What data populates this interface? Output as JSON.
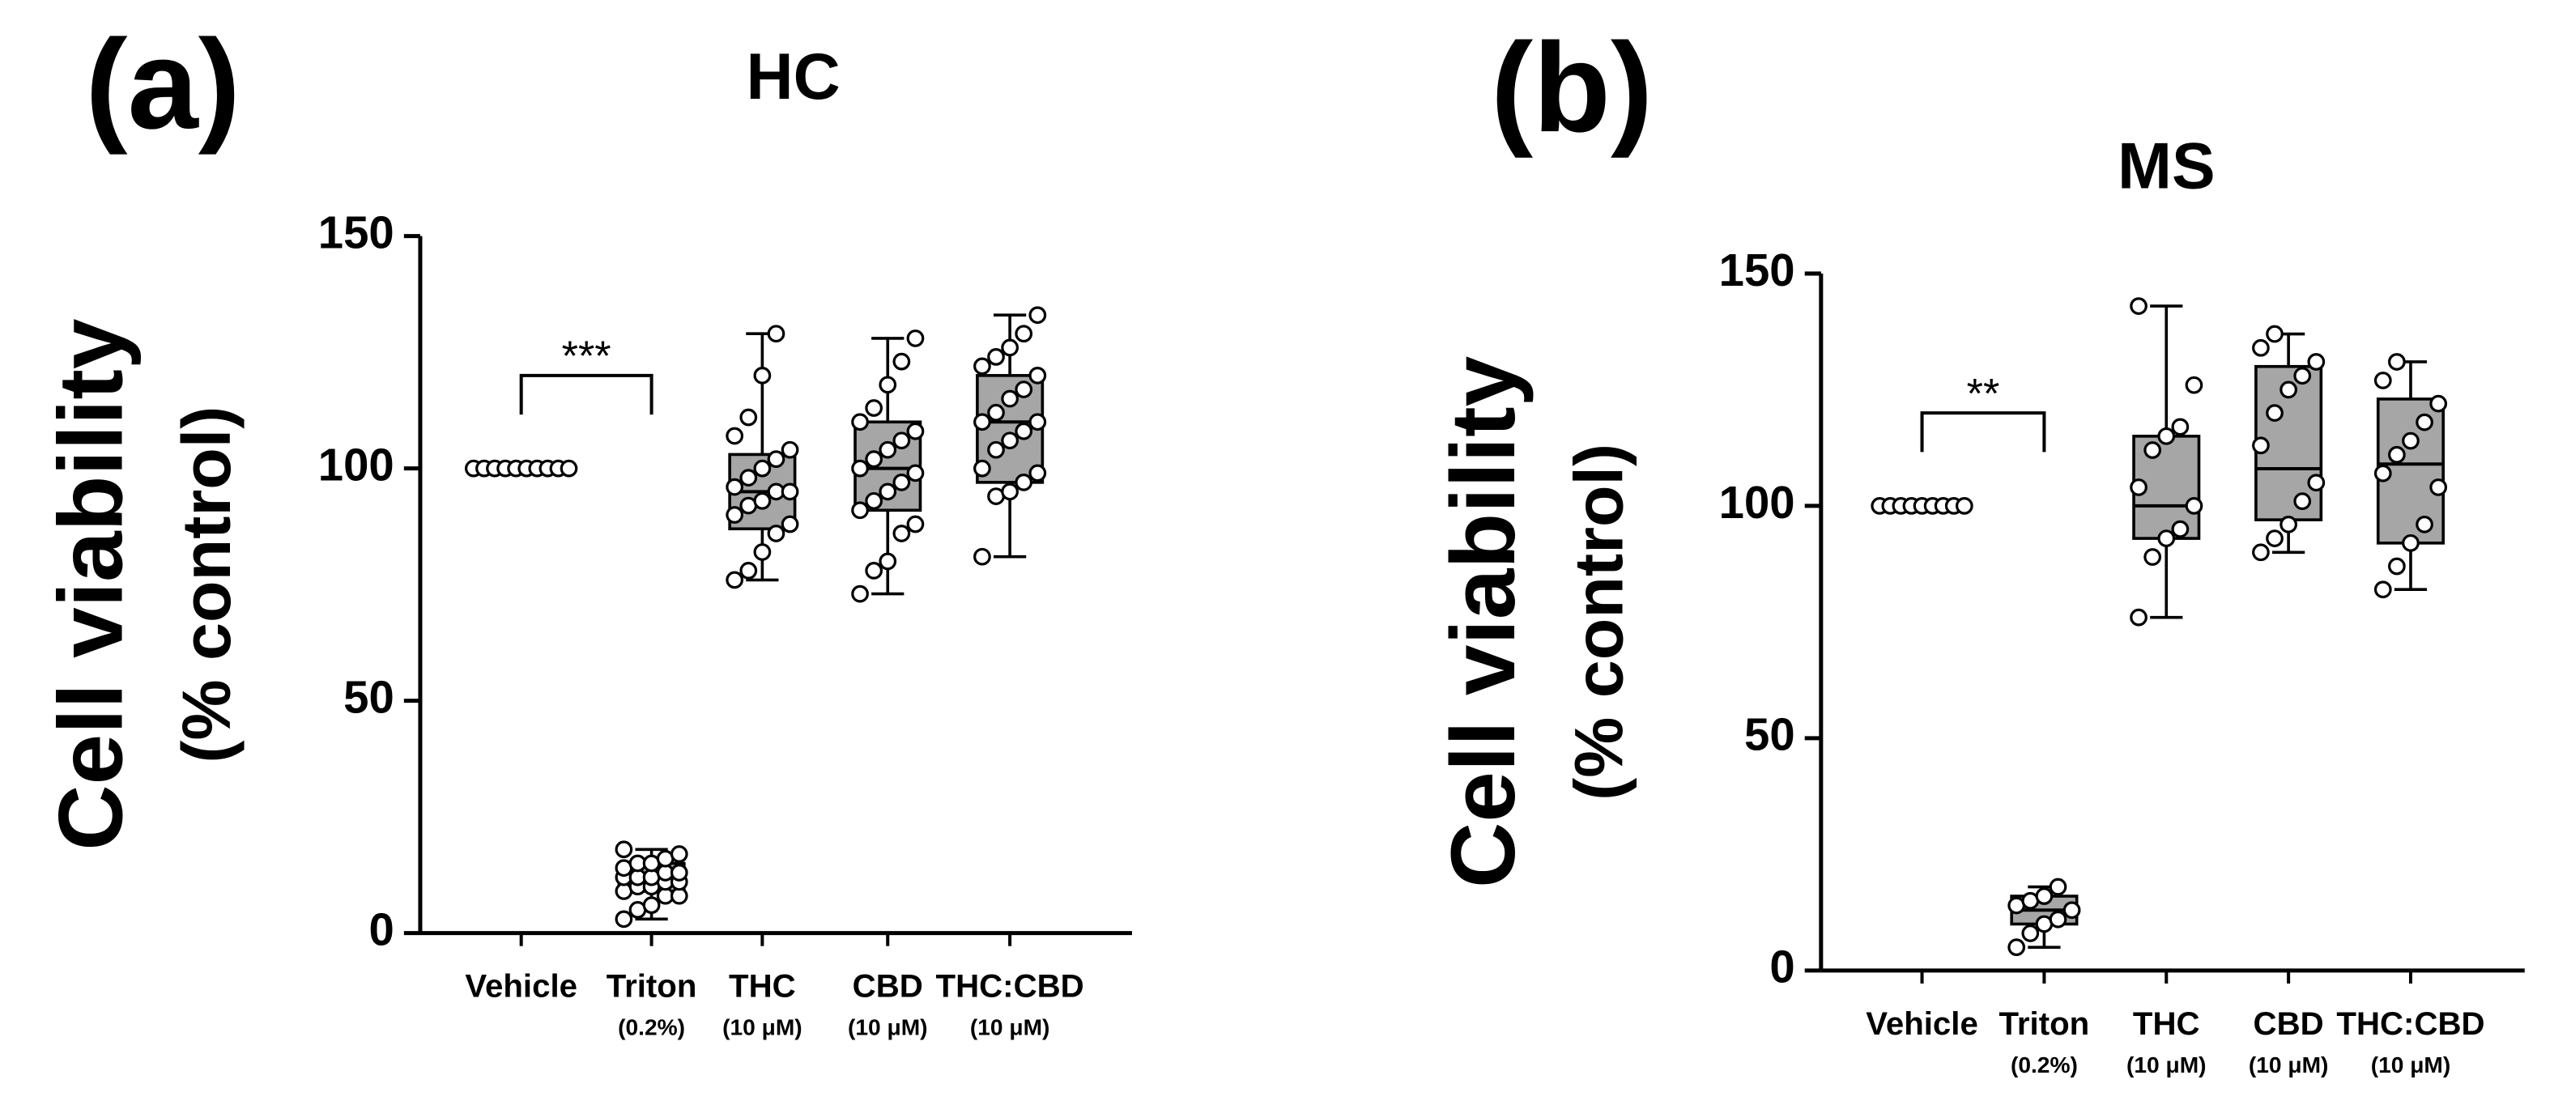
{
  "chart_data": [
    {
      "type": "box",
      "panel": "(a)",
      "title": "HC",
      "y_label": [
        "Cell viability",
        "(% control)"
      ],
      "categories": [
        "Vehicle",
        "Triton",
        "THC",
        "CBD",
        "THC:CBD"
      ],
      "category_notes": [
        null,
        "(0.2%)",
        "(10 μM)",
        "(10 μM)",
        "(10 μM)"
      ],
      "ylim": [
        0,
        150
      ],
      "yticks": [
        0,
        50,
        100,
        150
      ],
      "color": "#a6a6a6",
      "boxes": [
        {
          "min": 100,
          "q1": 100,
          "median": 100,
          "q3": 100,
          "max": 100
        },
        {
          "min": 3,
          "q1": 9,
          "median": 12,
          "q3": 15,
          "max": 18
        },
        {
          "min": 76,
          "q1": 87,
          "median": 95,
          "q3": 103,
          "max": 129
        },
        {
          "min": 73,
          "q1": 91,
          "median": 100,
          "q3": 110,
          "max": 128
        },
        {
          "min": 81,
          "q1": 97,
          "median": 110,
          "q3": 120,
          "max": 133
        }
      ],
      "points": [
        [
          100,
          100,
          100,
          100,
          100,
          100,
          100,
          100,
          100,
          100
        ],
        [
          3,
          5,
          6,
          8,
          8,
          9,
          10,
          10,
          11,
          11,
          12,
          12,
          12,
          13,
          13,
          14,
          15,
          15,
          16,
          17,
          18
        ],
        [
          76,
          78,
          82,
          86,
          88,
          90,
          92,
          93,
          95,
          95,
          96,
          98,
          100,
          102,
          104,
          107,
          111,
          120,
          129
        ],
        [
          73,
          78,
          80,
          86,
          88,
          91,
          93,
          95,
          97,
          99,
          100,
          102,
          104,
          106,
          108,
          110,
          113,
          118,
          123,
          128
        ],
        [
          81,
          94,
          95,
          97,
          99,
          100,
          104,
          106,
          108,
          110,
          110,
          112,
          115,
          117,
          120,
          122,
          124,
          126,
          129,
          133
        ]
      ],
      "annotations": [
        {
          "text": "***",
          "y": 120,
          "from": 0,
          "to": 1
        }
      ]
    },
    {
      "type": "box",
      "panel": "(b)",
      "title": "MS",
      "y_label": [
        "Cell viability",
        "(% control)"
      ],
      "categories": [
        "Vehicle",
        "Triton",
        "THC",
        "CBD",
        "THC:CBD"
      ],
      "category_notes": [
        null,
        "(0.2%)",
        "(10 μM)",
        "(10 μM)",
        "(10 μM)"
      ],
      "ylim": [
        0,
        150
      ],
      "yticks": [
        0,
        50,
        100,
        150
      ],
      "color": "#a6a6a6",
      "boxes": [
        {
          "min": 100,
          "q1": 100,
          "median": 100,
          "q3": 100,
          "max": 100
        },
        {
          "min": 5,
          "q1": 10,
          "median": 13,
          "q3": 16,
          "max": 18
        },
        {
          "min": 76,
          "q1": 93,
          "median": 100,
          "q3": 115,
          "max": 143
        },
        {
          "min": 90,
          "q1": 97,
          "median": 108,
          "q3": 130,
          "max": 137
        },
        {
          "min": 82,
          "q1": 92,
          "median": 109,
          "q3": 123,
          "max": 131
        }
      ],
      "points": [
        [
          100,
          100,
          100,
          100,
          100,
          100,
          100,
          100,
          100
        ],
        [
          5,
          8,
          10,
          11,
          13,
          14,
          15,
          16,
          18
        ],
        [
          76,
          89,
          93,
          95,
          100,
          104,
          112,
          115,
          117,
          126,
          143
        ],
        [
          90,
          93,
          96,
          101,
          105,
          113,
          120,
          125,
          128,
          131,
          134,
          137
        ],
        [
          82,
          87,
          92,
          96,
          104,
          107,
          111,
          114,
          118,
          122,
          127,
          131
        ]
      ],
      "annotations": [
        {
          "text": "**",
          "y": 120,
          "from": 0,
          "to": 1
        }
      ]
    }
  ]
}
